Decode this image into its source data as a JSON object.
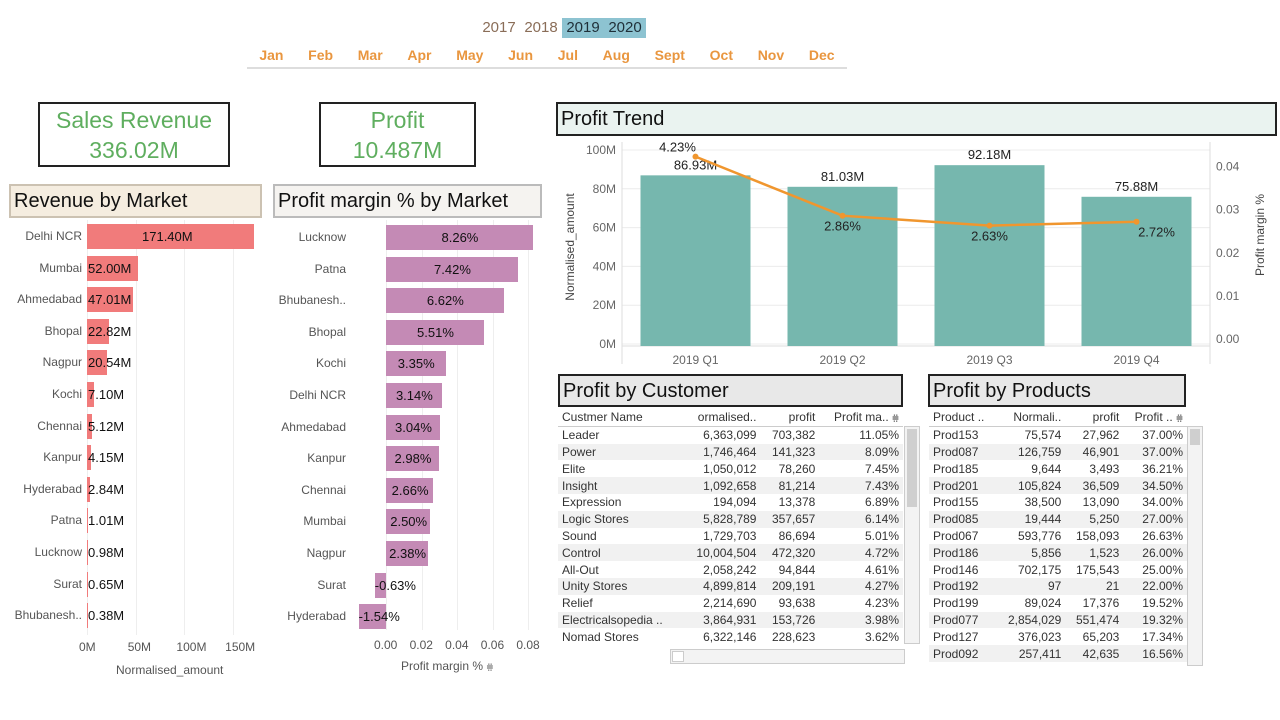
{
  "filters": {
    "years": [
      {
        "label": "2017",
        "selected": false
      },
      {
        "label": "2018",
        "selected": false
      },
      {
        "label": "2019",
        "selected": true
      },
      {
        "label": "2020",
        "selected": true
      }
    ],
    "months": [
      "Jan",
      "Feb",
      "Mar",
      "Apr",
      "May",
      "Jun",
      "Jul",
      "Aug",
      "Sept",
      "Oct",
      "Nov",
      "Dec"
    ]
  },
  "kpis": {
    "sales": {
      "title": "Sales Revenue",
      "value": "336.02M"
    },
    "profit": {
      "title": "Profit",
      "value": "10.487M"
    }
  },
  "titles": {
    "revenue_by_market": "Revenue by Market",
    "profit_margin_by_market": "Profit margin % by Market",
    "profit_trend": "Profit Trend",
    "profit_by_customer": "Profit by Customer",
    "profit_by_products": "Profit by Products"
  },
  "colors": {
    "revenue_bar": "#f17b7b",
    "margin_bar": "#c48ab5",
    "trend_bar": "#76b7ae",
    "trend_line": "#f0962e",
    "year_selected": "#8dc3d1",
    "month_text": "#e9963f",
    "kpi_text": "#5fae5f"
  },
  "chart_data": [
    {
      "type": "bar",
      "orientation": "horizontal",
      "title": "Revenue by Market",
      "categories": [
        "Delhi NCR",
        "Mumbai",
        "Ahmedabad",
        "Bhopal",
        "Nagpur",
        "Kochi",
        "Chennai",
        "Kanpur",
        "Hyderabad",
        "Patna",
        "Lucknow",
        "Surat",
        "Bhubanesh.."
      ],
      "values": [
        171.4,
        52.0,
        47.01,
        22.82,
        20.54,
        7.1,
        5.12,
        4.15,
        2.84,
        1.01,
        0.98,
        0.65,
        0.38
      ],
      "labels": [
        "171.40M",
        "52.00M",
        "47.01M",
        "22.82M",
        "20.54M",
        "7.10M",
        "5.12M",
        "4.15M",
        "2.84M",
        "1.01M",
        "0.98M",
        "0.65M",
        "0.38M"
      ],
      "xlabel": "Normalised_amount",
      "xlim": [
        0,
        180
      ],
      "xticks": [
        "0M",
        "50M",
        "100M",
        "150M"
      ],
      "xtick_values": [
        0,
        50,
        100,
        150
      ]
    },
    {
      "type": "bar",
      "orientation": "horizontal",
      "title": "Profit margin % by Market",
      "categories": [
        "Lucknow",
        "Patna",
        "Bhubanesh..",
        "Bhopal",
        "Kochi",
        "Delhi NCR",
        "Ahmedabad",
        "Kanpur",
        "Chennai",
        "Mumbai",
        "Nagpur",
        "Surat",
        "Hyderabad"
      ],
      "values": [
        0.0826,
        0.0742,
        0.0662,
        0.0551,
        0.0335,
        0.0314,
        0.0304,
        0.0298,
        0.0266,
        0.025,
        0.0238,
        -0.0063,
        -0.0154
      ],
      "labels": [
        "8.26%",
        "7.42%",
        "6.62%",
        "5.51%",
        "3.35%",
        "3.14%",
        "3.04%",
        "2.98%",
        "2.66%",
        "2.50%",
        "2.38%",
        "-0.63%",
        "-1.54%"
      ],
      "xlabel": "Profit margin %",
      "xlim": [
        -0.02,
        0.085
      ],
      "xticks": [
        "0.00",
        "0.02",
        "0.04",
        "0.06",
        "0.08"
      ],
      "xtick_values": [
        0,
        0.02,
        0.04,
        0.06,
        0.08
      ]
    },
    {
      "type": "bar",
      "title": "Profit Trend",
      "categories": [
        "2019 Q1",
        "2019 Q2",
        "2019 Q3",
        "2019 Q4"
      ],
      "series": [
        {
          "name": "Normalised_amount",
          "type": "bar",
          "values": [
            86.93,
            81.03,
            92.18,
            75.88
          ],
          "labels": [
            "86.93M",
            "81.03M",
            "92.18M",
            "75.88M"
          ]
        },
        {
          "name": "Profit margin %",
          "type": "line",
          "values": [
            0.0423,
            0.0286,
            0.0263,
            0.0272
          ],
          "labels": [
            "4.23%",
            "2.86%",
            "2.63%",
            "2.72%"
          ]
        }
      ],
      "ylabel": "Normalised_amount",
      "ylim": [
        0,
        100
      ],
      "yticks": [
        "0M",
        "20M",
        "40M",
        "60M",
        "80M",
        "100M"
      ],
      "ytick_values": [
        0,
        20,
        40,
        60,
        80,
        100
      ],
      "y2label": "Profit margin %",
      "y2lim": [
        0,
        0.0425
      ],
      "y2ticks": [
        "0.00",
        "0.01",
        "0.02",
        "0.03",
        "0.04"
      ],
      "y2tick_values": [
        0,
        0.01,
        0.02,
        0.03,
        0.04
      ],
      "grid": true
    }
  ],
  "customer_table": {
    "columns": [
      "Custmer Name",
      "ormalised..",
      "profit",
      "Profit ma.."
    ],
    "rows": [
      [
        "Leader",
        "6,363,099",
        "703,382",
        "11.05%"
      ],
      [
        "Power",
        "1,746,464",
        "141,323",
        "8.09%"
      ],
      [
        "Elite",
        "1,050,012",
        "78,260",
        "7.45%"
      ],
      [
        "Insight",
        "1,092,658",
        "81,214",
        "7.43%"
      ],
      [
        "Expression",
        "194,094",
        "13,378",
        "6.89%"
      ],
      [
        "Logic Stores",
        "5,828,789",
        "357,657",
        "6.14%"
      ],
      [
        "Sound",
        "1,729,703",
        "86,694",
        "5.01%"
      ],
      [
        "Control",
        "10,004,504",
        "472,320",
        "4.72%"
      ],
      [
        "All-Out",
        "2,058,242",
        "94,844",
        "4.61%"
      ],
      [
        "Unity Stores",
        "4,899,814",
        "209,191",
        "4.27%"
      ],
      [
        "Relief",
        "2,214,690",
        "93,638",
        "4.23%"
      ],
      [
        "Electricalsopedia ..",
        "3,864,931",
        "153,726",
        "3.98%"
      ],
      [
        "Nomad Stores",
        "6,322,146",
        "228,623",
        "3.62%"
      ]
    ]
  },
  "product_table": {
    "columns": [
      "Product ..",
      "Normali..",
      "profit",
      "Profit .."
    ],
    "rows": [
      [
        "Prod153",
        "75,574",
        "27,962",
        "37.00%"
      ],
      [
        "Prod087",
        "126,759",
        "46,901",
        "37.00%"
      ],
      [
        "Prod185",
        "9,644",
        "3,493",
        "36.21%"
      ],
      [
        "Prod201",
        "105,824",
        "36,509",
        "34.50%"
      ],
      [
        "Prod155",
        "38,500",
        "13,090",
        "34.00%"
      ],
      [
        "Prod085",
        "19,444",
        "5,250",
        "27.00%"
      ],
      [
        "Prod067",
        "593,776",
        "158,093",
        "26.63%"
      ],
      [
        "Prod186",
        "5,856",
        "1,523",
        "26.00%"
      ],
      [
        "Prod146",
        "702,175",
        "175,543",
        "25.00%"
      ],
      [
        "Prod192",
        "97",
        "21",
        "22.00%"
      ],
      [
        "Prod199",
        "89,024",
        "17,376",
        "19.52%"
      ],
      [
        "Prod077",
        "2,854,029",
        "551,474",
        "19.32%"
      ],
      [
        "Prod127",
        "376,023",
        "65,203",
        "17.34%"
      ],
      [
        "Prod092",
        "257,411",
        "42,635",
        "16.56%"
      ]
    ]
  },
  "icons": {
    "sort": "sort-icon"
  },
  "sort_glyph": "⩷"
}
